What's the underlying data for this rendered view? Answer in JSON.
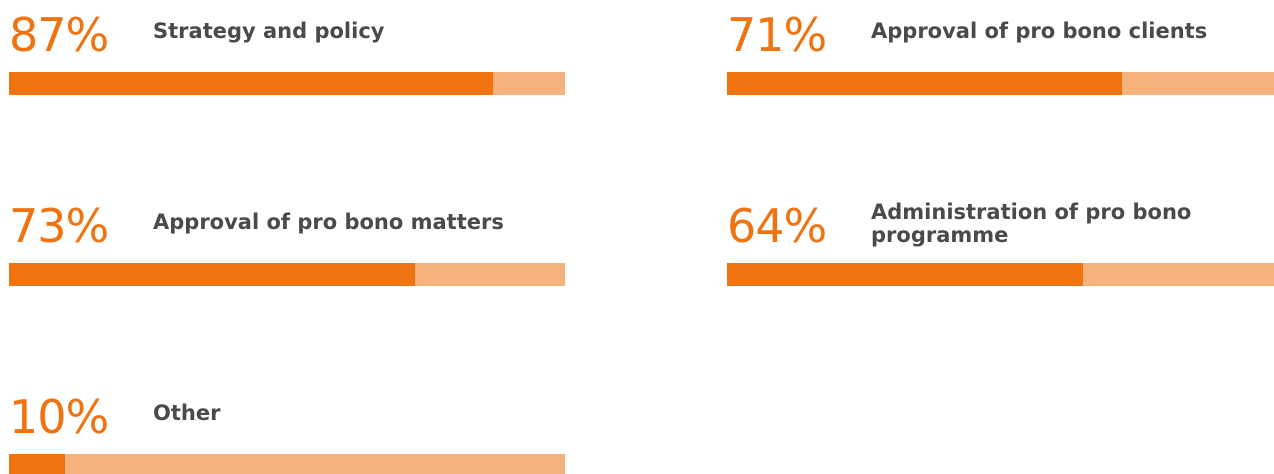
{
  "colors": {
    "fill": "#ef7411",
    "track": "#f5b27a",
    "percent_text": "#ef7411",
    "label_text": "#4a4a4a"
  },
  "chart_data": {
    "type": "bar",
    "orientation": "horizontal",
    "value_unit": "%",
    "xlim": [
      0,
      100
    ],
    "categories": [
      "Strategy and policy",
      "Approval of pro bono clients",
      "Approval of pro bono matters",
      "Administration of pro bono programme",
      "Other"
    ],
    "values": [
      87,
      71,
      73,
      64,
      10
    ],
    "value_labels": [
      "87%",
      "71%",
      "73%",
      "64%",
      "10%"
    ],
    "display_labels": [
      "Strategy and policy",
      "Approval of pro bono clients",
      "Approval of pro bono matters",
      "Administration of pro bono\nprogramme",
      "Other"
    ]
  }
}
